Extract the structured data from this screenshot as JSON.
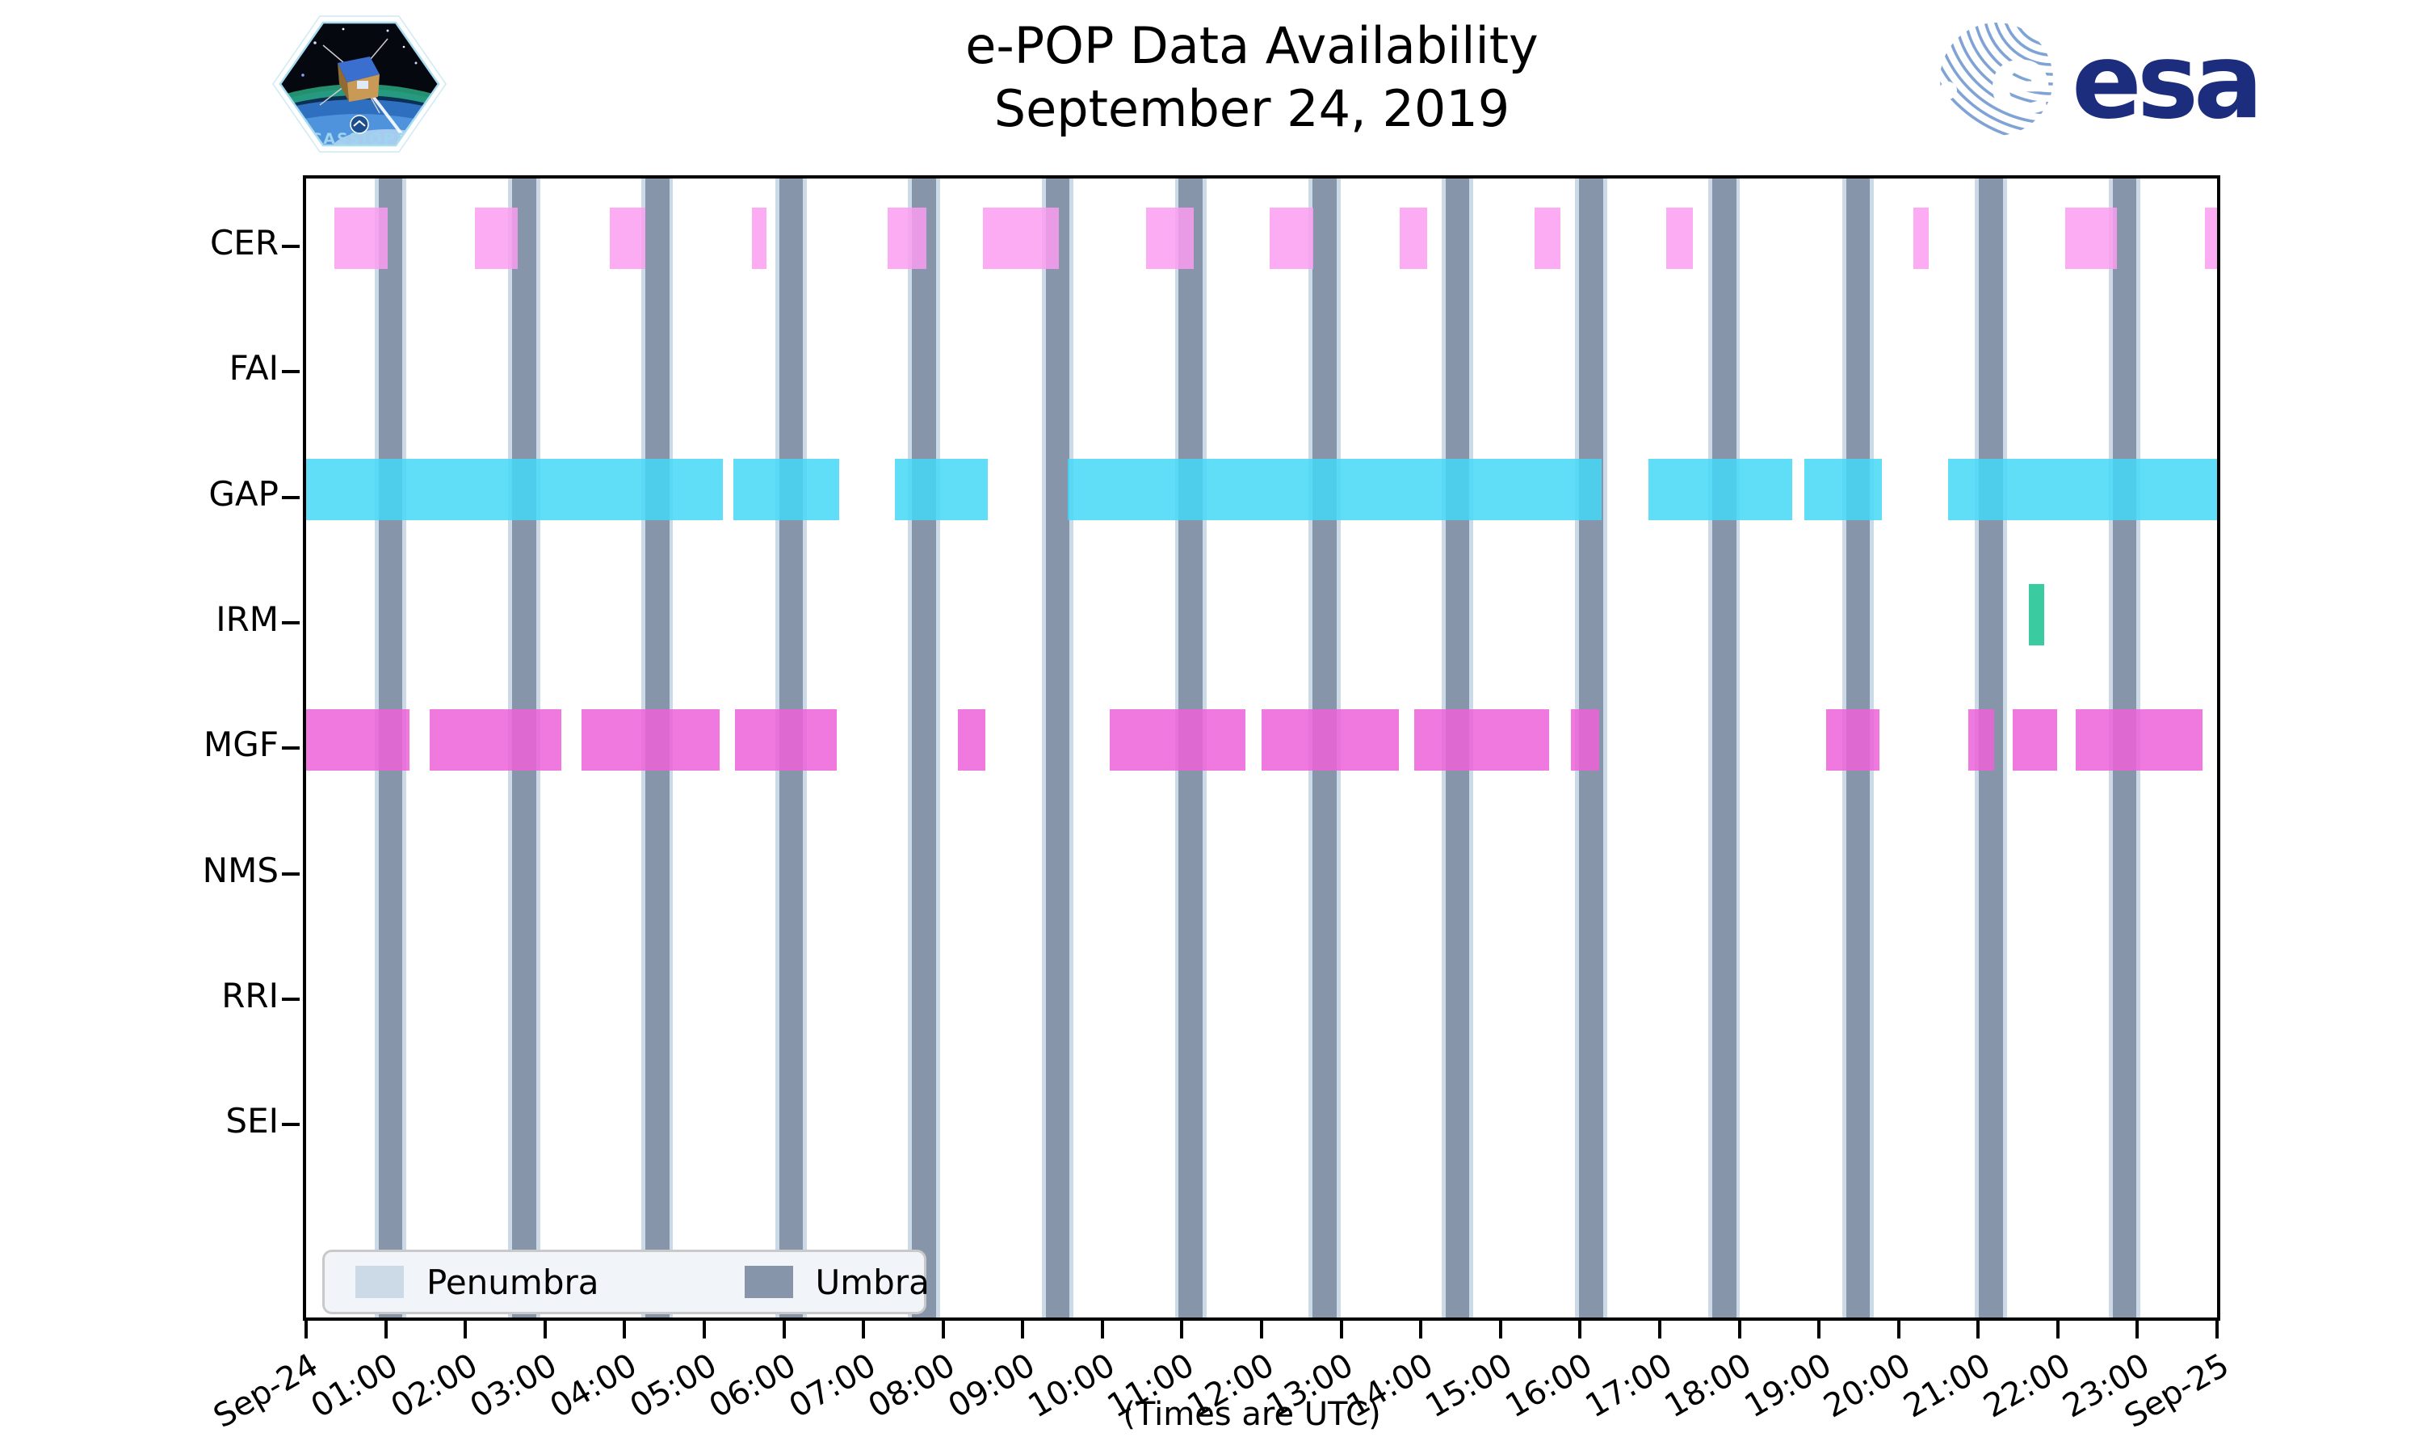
{
  "title": {
    "line1": "e-POP Data Availability",
    "line2": "September 24, 2019"
  },
  "branding": {
    "esa_text": "esa",
    "patch_text": "CASSIOPE",
    "esa_blue": "#1b2d7c",
    "esa_globe_blue": "#7fa3d4"
  },
  "axis": {
    "instruments": [
      "CER",
      "FAI",
      "GAP",
      "IRM",
      "MGF",
      "NMS",
      "RRI",
      "SEI"
    ],
    "x_tick_labels": [
      "Sep-24",
      "01:00",
      "02:00",
      "03:00",
      "04:00",
      "05:00",
      "06:00",
      "07:00",
      "08:00",
      "09:00",
      "10:00",
      "11:00",
      "12:00",
      "13:00",
      "14:00",
      "15:00",
      "16:00",
      "17:00",
      "18:00",
      "19:00",
      "20:00",
      "21:00",
      "22:00",
      "23:00",
      "Sep-25"
    ],
    "x_caption": "(Times are UTC)"
  },
  "legend": {
    "penumbra_label": "Penumbra",
    "umbra_label": "Umbra",
    "penumbra_color": "#ccd9e6",
    "umbra_color": "#8795aa"
  },
  "chart_data": {
    "type": "availability-gantt",
    "time_axis_hours": [
      0,
      24
    ],
    "rows": [
      "CER",
      "FAI",
      "GAP",
      "IRM",
      "MGF",
      "NMS",
      "RRI",
      "SEI"
    ],
    "umbra_intervals_hours": [
      [
        0.91,
        1.21
      ],
      [
        2.59,
        2.89
      ],
      [
        4.26,
        4.56
      ],
      [
        5.94,
        6.24
      ],
      [
        7.61,
        7.91
      ],
      [
        9.29,
        9.59
      ],
      [
        10.96,
        11.26
      ],
      [
        12.64,
        12.94
      ],
      [
        14.31,
        14.61
      ],
      [
        15.99,
        16.29
      ],
      [
        17.66,
        17.96
      ],
      [
        19.34,
        19.64
      ],
      [
        21.01,
        21.31
      ],
      [
        22.69,
        22.99
      ]
    ],
    "penumbra_halfwidth_hours": 0.05,
    "series": {
      "CER": {
        "color": "#fa9ef0",
        "intervals": [
          [
            0.35,
            1.02
          ],
          [
            2.12,
            2.66
          ],
          [
            3.81,
            4.26
          ],
          [
            5.6,
            5.78
          ],
          [
            7.3,
            7.79
          ],
          [
            8.5,
            9.45
          ],
          [
            10.55,
            11.15
          ],
          [
            12.1,
            12.65
          ],
          [
            13.73,
            14.08
          ],
          [
            15.43,
            15.75
          ],
          [
            17.08,
            17.42
          ],
          [
            20.19,
            20.38
          ],
          [
            22.09,
            22.74
          ],
          [
            23.85,
            24.0
          ]
        ]
      },
      "FAI": {
        "color": null,
        "intervals": []
      },
      "GAP": {
        "color": "#44d8f7",
        "intervals": [
          [
            0.0,
            5.23
          ],
          [
            5.37,
            6.69
          ],
          [
            7.39,
            8.56
          ],
          [
            9.57,
            16.27
          ],
          [
            16.86,
            18.66
          ],
          [
            18.82,
            19.79
          ],
          [
            20.62,
            24.0
          ]
        ]
      },
      "IRM": {
        "color": "#17c28f",
        "intervals": [
          [
            21.64,
            21.83
          ]
        ]
      },
      "MGF": {
        "color": "#ec62d8",
        "intervals": [
          [
            0.0,
            1.3
          ],
          [
            1.55,
            3.21
          ],
          [
            3.46,
            5.19
          ],
          [
            5.39,
            6.66
          ],
          [
            8.19,
            8.53
          ],
          [
            10.09,
            11.8
          ],
          [
            12.0,
            13.72
          ],
          [
            13.92,
            15.61
          ],
          [
            15.89,
            16.24
          ],
          [
            19.09,
            19.76
          ],
          [
            20.88,
            21.2
          ],
          [
            21.43,
            21.99
          ],
          [
            22.22,
            23.82
          ]
        ]
      },
      "NMS": {
        "color": null,
        "intervals": []
      },
      "RRI": {
        "color": null,
        "intervals": []
      },
      "SEI": {
        "color": null,
        "intervals": []
      }
    }
  }
}
